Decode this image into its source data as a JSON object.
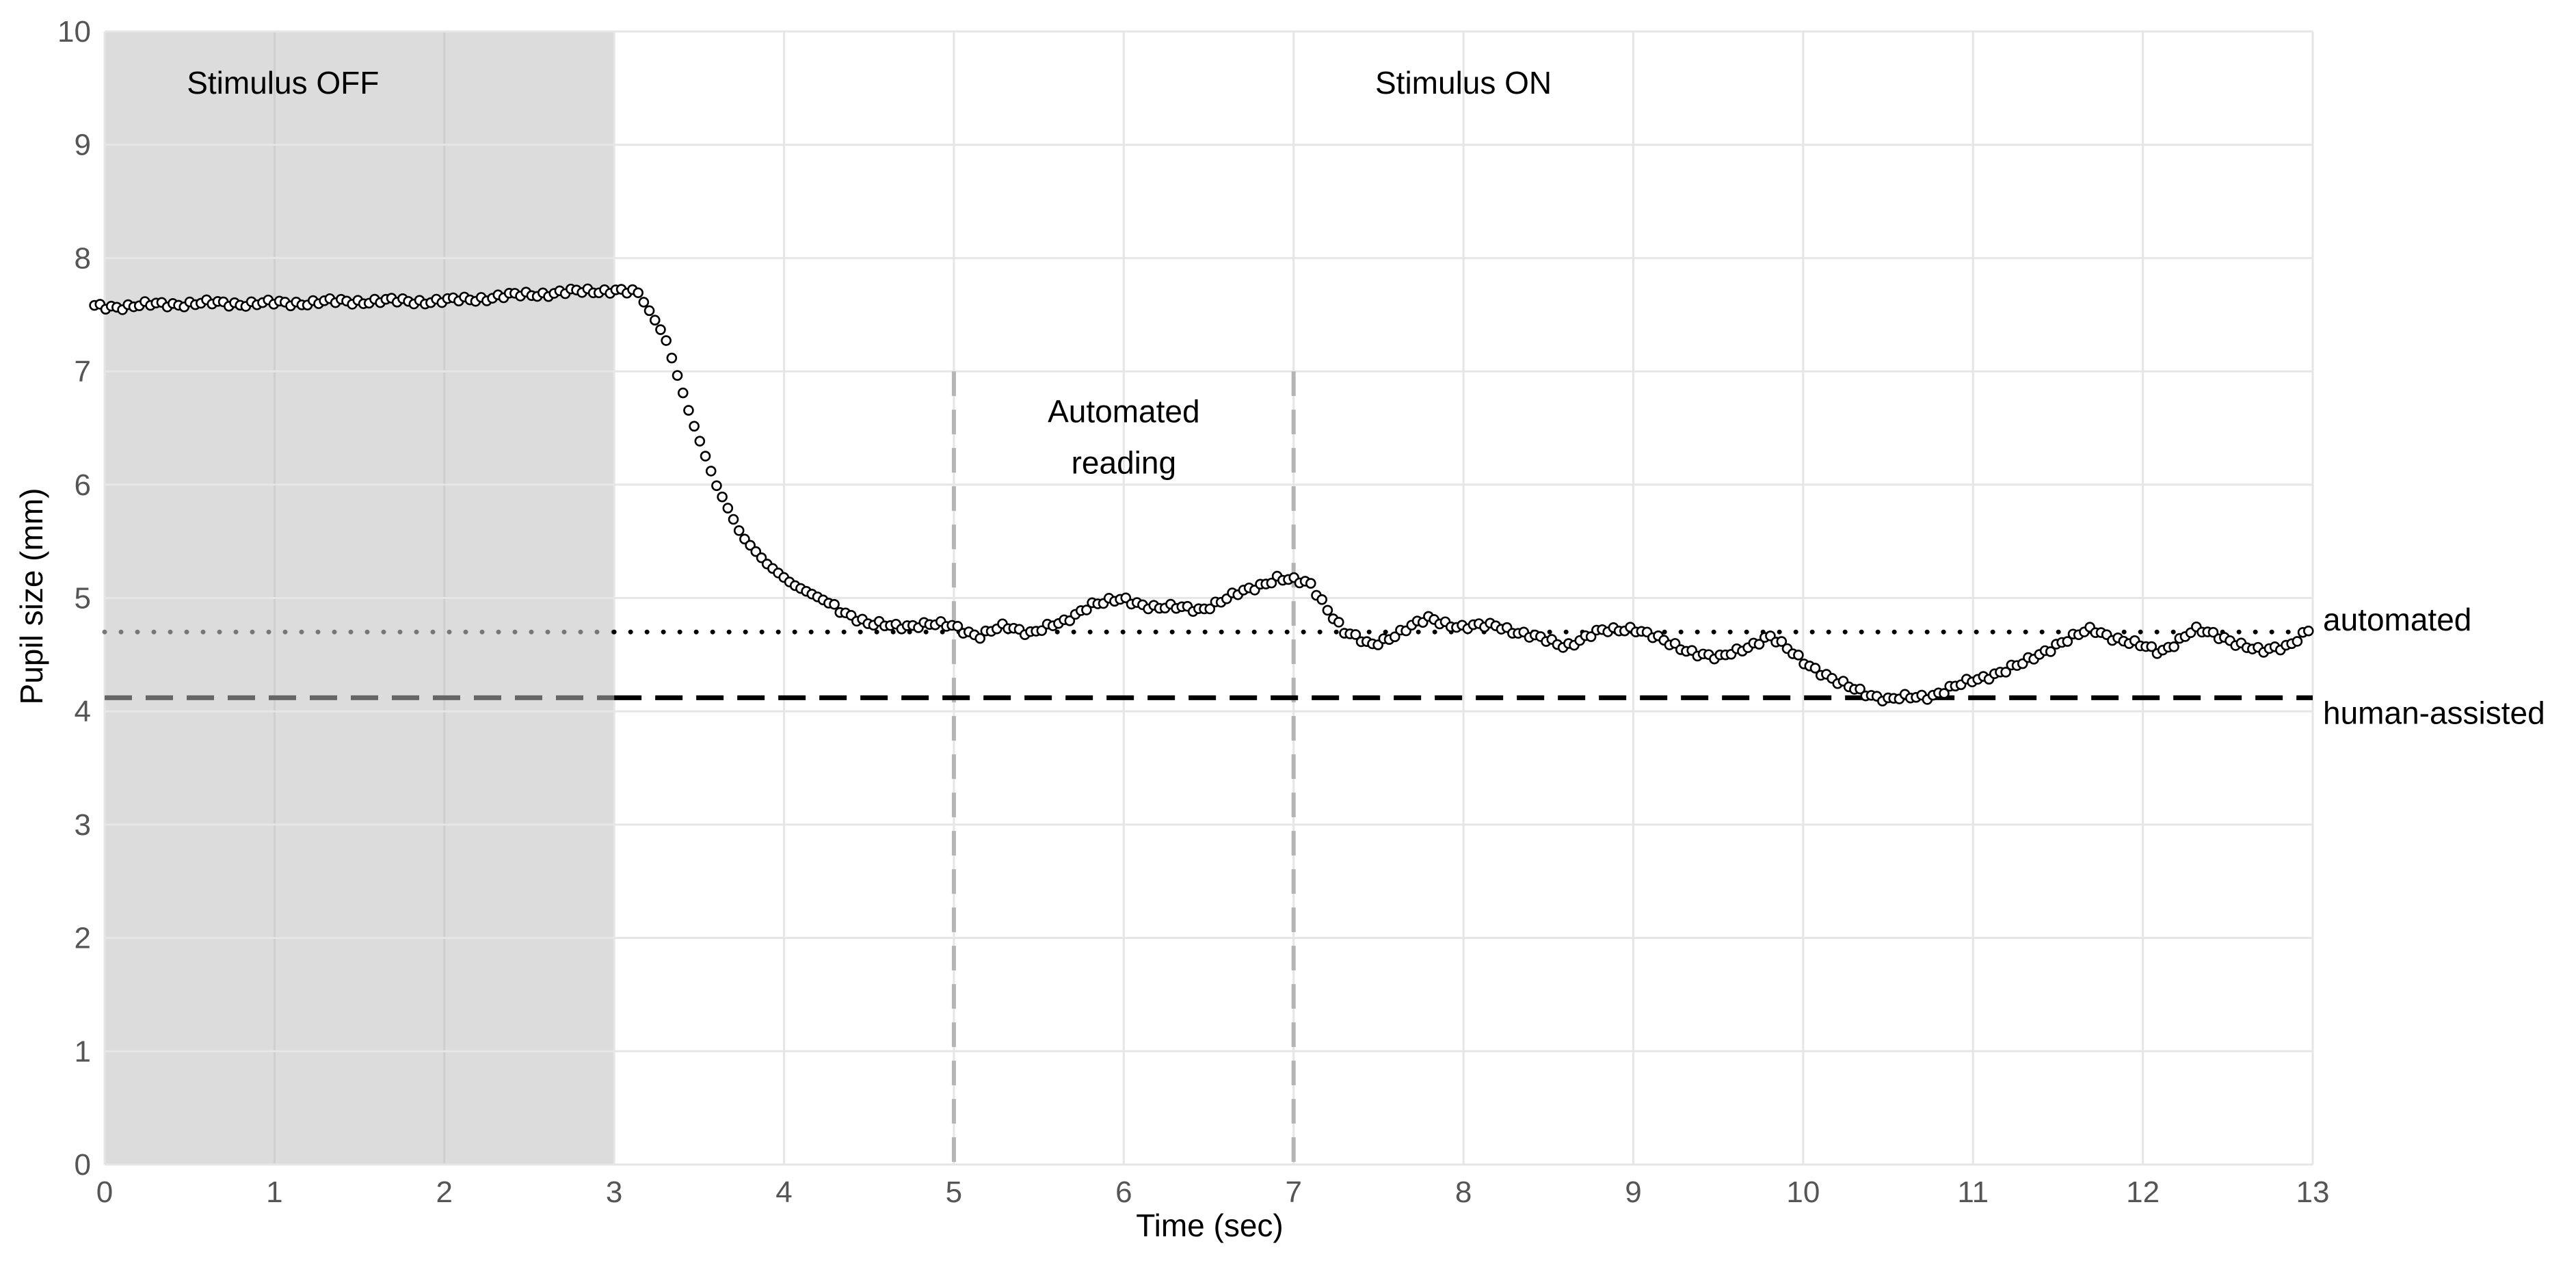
{
  "chart_data": {
    "type": "scatter",
    "title": "",
    "xlabel": "Time (sec)",
    "ylabel": "Pupil size (mm)",
    "xlim": [
      0,
      13
    ],
    "ylim": [
      0,
      10
    ],
    "x_ticks": [
      "0",
      "1",
      "2",
      "3",
      "4",
      "5",
      "6",
      "7",
      "8",
      "9",
      "10",
      "11",
      "12",
      "13"
    ],
    "y_ticks": [
      "0",
      "1",
      "2",
      "3",
      "4",
      "5",
      "6",
      "7",
      "8",
      "9",
      "10"
    ],
    "grid": true,
    "regions": [
      {
        "label": "Stimulus OFF",
        "x_start": 0,
        "x_end": 3,
        "shaded": true,
        "color": "#dcdcdc"
      },
      {
        "label": "Stimulus ON",
        "x_start": 3,
        "x_end": 13,
        "shaded": false
      }
    ],
    "annotations": [
      {
        "text_lines": [
          "Automated",
          "reading"
        ],
        "x_start": 5,
        "x_end": 7
      }
    ],
    "reference_lines": [
      {
        "name": "automated",
        "y": 4.7,
        "style": "dotted"
      },
      {
        "name": "human-assisted",
        "y": 4.12,
        "style": "dashed"
      }
    ],
    "keyframes": [
      [
        0,
        7.57
      ],
      [
        0.5,
        7.6
      ],
      [
        1,
        7.6
      ],
      [
        1.5,
        7.62
      ],
      [
        2,
        7.62
      ],
      [
        2.5,
        7.68
      ],
      [
        3,
        7.72
      ],
      [
        3.15,
        7.68
      ],
      [
        3.3,
        7.3
      ],
      [
        3.45,
        6.6
      ],
      [
        3.6,
        6.0
      ],
      [
        3.75,
        5.55
      ],
      [
        3.9,
        5.3
      ],
      [
        4.05,
        5.12
      ],
      [
        4.25,
        4.97
      ],
      [
        4.5,
        4.76
      ],
      [
        5,
        4.76
      ],
      [
        5.15,
        4.66
      ],
      [
        5.3,
        4.75
      ],
      [
        5.45,
        4.7
      ],
      [
        5.65,
        4.78
      ],
      [
        5.8,
        4.95
      ],
      [
        6.0,
        4.98
      ],
      [
        6.2,
        4.92
      ],
      [
        6.45,
        4.9
      ],
      [
        6.75,
        5.08
      ],
      [
        6.9,
        5.18
      ],
      [
        7.1,
        5.12
      ],
      [
        7.3,
        4.7
      ],
      [
        7.45,
        4.58
      ],
      [
        7.6,
        4.68
      ],
      [
        7.8,
        4.82
      ],
      [
        8.0,
        4.74
      ],
      [
        8.2,
        4.76
      ],
      [
        8.4,
        4.66
      ],
      [
        8.6,
        4.58
      ],
      [
        8.8,
        4.7
      ],
      [
        9.0,
        4.74
      ],
      [
        9.2,
        4.6
      ],
      [
        9.5,
        4.46
      ],
      [
        9.8,
        4.66
      ],
      [
        10.0,
        4.45
      ],
      [
        10.2,
        4.25
      ],
      [
        10.5,
        4.1
      ],
      [
        10.75,
        4.14
      ],
      [
        11.0,
        4.27
      ],
      [
        11.3,
        4.42
      ],
      [
        11.5,
        4.6
      ],
      [
        11.7,
        4.72
      ],
      [
        11.9,
        4.62
      ],
      [
        12.1,
        4.52
      ],
      [
        12.3,
        4.72
      ],
      [
        12.5,
        4.64
      ],
      [
        12.7,
        4.52
      ],
      [
        12.85,
        4.58
      ],
      [
        13.0,
        4.75
      ]
    ],
    "point_spacing": 0.033,
    "wiggle_amplitude": 0.035
  }
}
